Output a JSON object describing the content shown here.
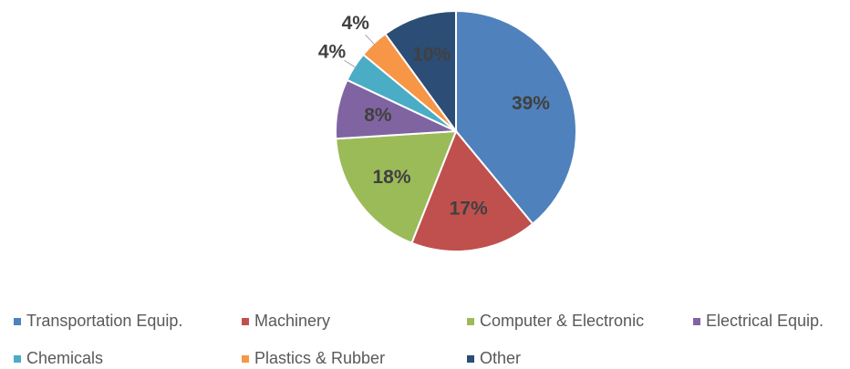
{
  "chart_data": {
    "type": "pie",
    "categories": [
      "Transportation Equip.",
      "Machinery",
      "Computer & Electronic",
      "Electrical Equip.",
      "Chemicals",
      "Plastics & Rubber",
      "Other"
    ],
    "values": [
      39,
      17,
      18,
      8,
      4,
      4,
      10
    ],
    "value_labels": [
      "39%",
      "17%",
      "18%",
      "8%",
      "4%",
      "4%",
      "10%"
    ],
    "colors": [
      "#4f81bd",
      "#c0504d",
      "#9bbb59",
      "#8064a2",
      "#4bacc6",
      "#f79646",
      "#2c4d75"
    ],
    "legend": "bottom"
  }
}
